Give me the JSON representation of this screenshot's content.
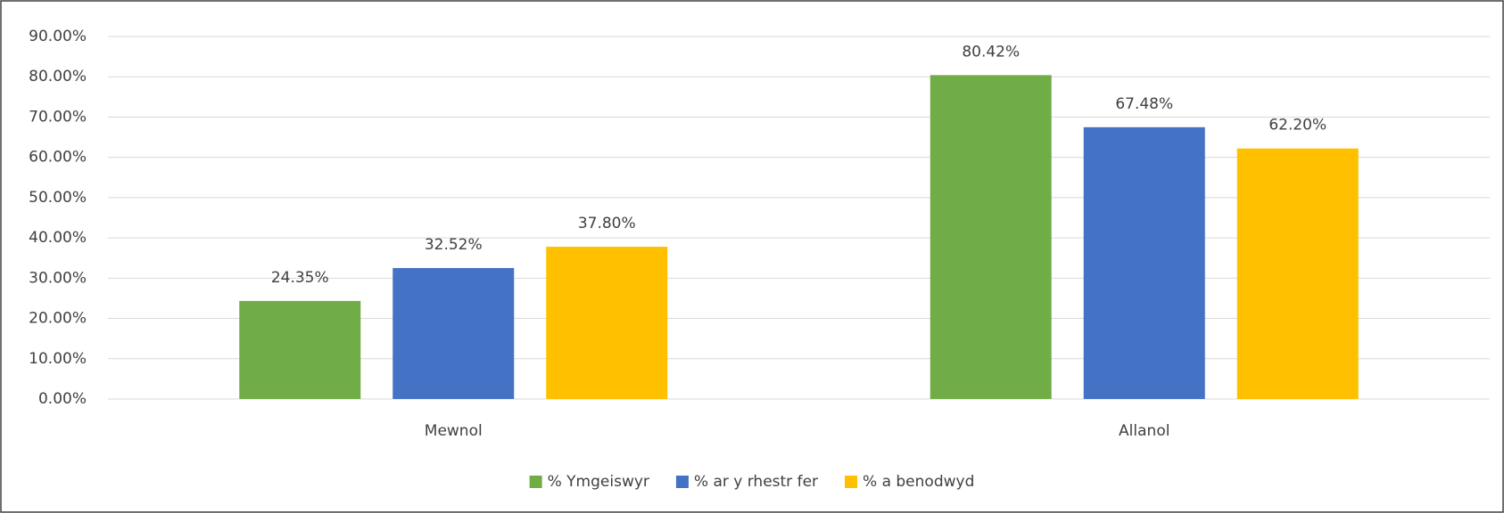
{
  "chart_data": {
    "type": "bar",
    "categories": [
      "Mewnol",
      "Allanol"
    ],
    "series": [
      {
        "name": "% Ymgeiswyr",
        "color": "#70ad47",
        "values": [
          24.35,
          80.42
        ],
        "value_labels": [
          "24.35%",
          "80.42%"
        ]
      },
      {
        "name": "% ar y rhestr fer",
        "color": "#4472c4",
        "values": [
          32.52,
          67.48
        ],
        "value_labels": [
          "32.52%",
          "67.48%"
        ]
      },
      {
        "name": "% a benodwyd",
        "color": "#ffc000",
        "values": [
          37.8,
          62.2
        ],
        "value_labels": [
          "37.80%",
          "62.20%"
        ]
      }
    ],
    "ylim": [
      0,
      90
    ],
    "yticks": [
      {
        "value": 0,
        "label": "0.00%"
      },
      {
        "value": 10,
        "label": "10.00%"
      },
      {
        "value": 20,
        "label": "20.00%"
      },
      {
        "value": 30,
        "label": "30.00%"
      },
      {
        "value": 40,
        "label": "40.00%"
      },
      {
        "value": 50,
        "label": "50.00%"
      },
      {
        "value": 60,
        "label": "60.00%"
      },
      {
        "value": 70,
        "label": "70.00%"
      },
      {
        "value": 80,
        "label": "80.00%"
      },
      {
        "value": 90,
        "label": "90.00%"
      }
    ],
    "grid": true,
    "legend": "bottom"
  }
}
